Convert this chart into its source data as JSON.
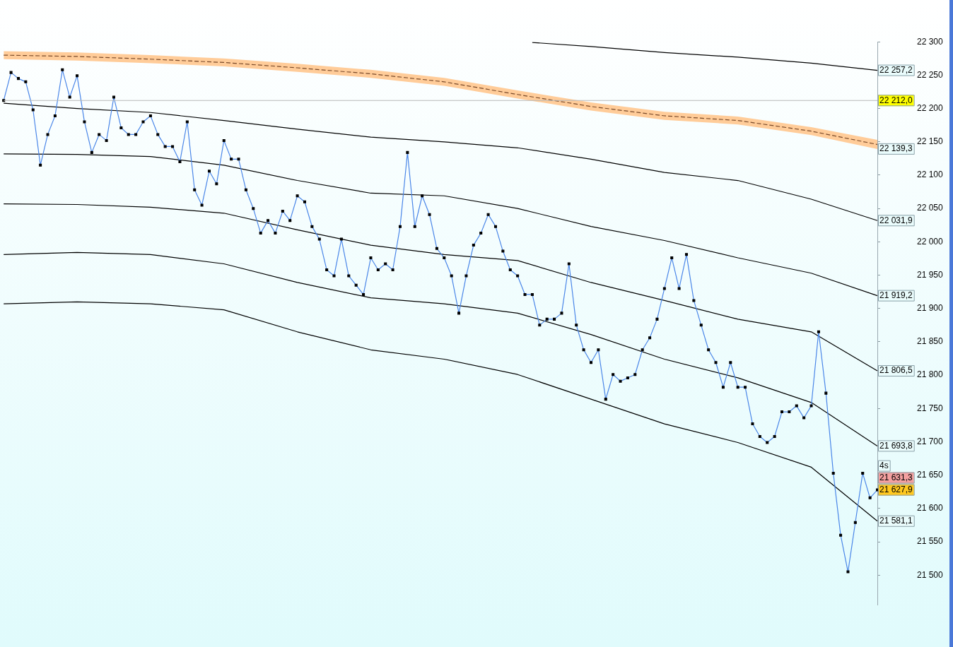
{
  "chart_data": {
    "type": "line",
    "categories": [
      null,
      null,
      null,
      null,
      null,
      null,
      null,
      null,
      null,
      null,
      null,
      null,
      null,
      null,
      null,
      null,
      null,
      null,
      null,
      null,
      null,
      null,
      null,
      null,
      null,
      null,
      null,
      null,
      null,
      null,
      null,
      null,
      null,
      null,
      null,
      null,
      null,
      null,
      null,
      null,
      null,
      null,
      null,
      null,
      null,
      null,
      null,
      null,
      null,
      null,
      null,
      null,
      null,
      null,
      null,
      null,
      null,
      null,
      null,
      null,
      null,
      null,
      null,
      null,
      null,
      null,
      null,
      null,
      null,
      null,
      null,
      null,
      null,
      null,
      null,
      null,
      null,
      null,
      null,
      null,
      null,
      null,
      null,
      null,
      null,
      null,
      null,
      null,
      null,
      null,
      null,
      null,
      null,
      null,
      null,
      null,
      null,
      null,
      null,
      null,
      null,
      null,
      null,
      null,
      null,
      null,
      null,
      null,
      null,
      null,
      null,
      null,
      null,
      null,
      null,
      null,
      null,
      null,
      null,
      null
    ],
    "tick_labels": "y",
    "legend": false,
    "grid": false,
    "ylim": [
      21455,
      22300
    ],
    "yticks": [
      {
        "value": 21500,
        "label": "21 500"
      },
      {
        "value": 21550,
        "label": "21 550"
      },
      {
        "value": 21600,
        "label": "21 600"
      },
      {
        "value": 21650,
        "label": "21 650"
      },
      {
        "value": 21700,
        "label": "21 700"
      },
      {
        "value": 21750,
        "label": "21 750"
      },
      {
        "value": 21800,
        "label": "21 800"
      },
      {
        "value": 21850,
        "label": "21 850"
      },
      {
        "value": 21900,
        "label": "21 900"
      },
      {
        "value": 21950,
        "label": "21 950"
      },
      {
        "value": 22000,
        "label": "22 000"
      },
      {
        "value": 22050,
        "label": "22 050"
      },
      {
        "value": 22100,
        "label": "22 100"
      },
      {
        "value": 22150,
        "label": "22 150"
      },
      {
        "value": 22200,
        "label": "22 200"
      },
      {
        "value": 22250,
        "label": "22 250"
      },
      {
        "value": 22300,
        "label": "22 300"
      }
    ],
    "series": [
      {
        "type": "line",
        "color": "#4a86e8",
        "marker": "square",
        "values": [
          22212,
          22254,
          22245,
          22240,
          22198,
          22115,
          22161,
          22189,
          22258,
          22217,
          22249,
          22180,
          22134,
          22161,
          22152,
          22217,
          22171,
          22161,
          22161,
          22180,
          22189,
          22161,
          22143,
          22143,
          22120,
          22180,
          22078,
          22055,
          22106,
          22087,
          22152,
          22124,
          22124,
          22078,
          22050,
          22013,
          22032,
          22013,
          22046,
          22032,
          22069,
          22060,
          22023,
          22004,
          21958,
          21949,
          22004,
          21949,
          21935,
          21921,
          21976,
          21958,
          21967,
          21958,
          22023,
          22134,
          22023,
          22069,
          22041,
          21990,
          21976,
          21949,
          21893,
          21949,
          21995,
          22013,
          22041,
          22023,
          21986,
          21958,
          21949,
          21921,
          21921,
          21875,
          21884,
          21884,
          21893,
          21967,
          21875,
          21838,
          21819,
          21838,
          21764,
          21801,
          21791,
          21796,
          21801,
          21838,
          21856,
          21884,
          21930,
          21976,
          21930,
          21981,
          21912,
          21875,
          21838,
          21819,
          21782,
          21819,
          21782,
          21782,
          21727,
          21708,
          21699,
          21708,
          21745,
          21745,
          21754,
          21736,
          21754,
          21865,
          21773,
          21653,
          21560,
          21505,
          21579,
          21653,
          21616,
          21627.9
        ],
        "value_labels": [
          null,
          null,
          null,
          null,
          null,
          null,
          null,
          null,
          null,
          null,
          null,
          null,
          null,
          null,
          null,
          null,
          null,
          null,
          null,
          null,
          null,
          null,
          null,
          null,
          null,
          null,
          null,
          null,
          null,
          null,
          null,
          null,
          null,
          null,
          null,
          null,
          null,
          null,
          null,
          null,
          null,
          null,
          null,
          null,
          null,
          null,
          null,
          null,
          null,
          null,
          null,
          null,
          null,
          null,
          null,
          null,
          null,
          null,
          null,
          null,
          null,
          null,
          null,
          null,
          null,
          null,
          null,
          null,
          null,
          null,
          null,
          null,
          null,
          null,
          null,
          null,
          null,
          null,
          null,
          null,
          null,
          null,
          null,
          null,
          null,
          null,
          null,
          null,
          null,
          null,
          null,
          null,
          null,
          null,
          null,
          null,
          null,
          null,
          null,
          null,
          null,
          null,
          null,
          null,
          null,
          null,
          null,
          null,
          null,
          null,
          null,
          null,
          null,
          null,
          null,
          null,
          null,
          null,
          null,
          "21 627,9"
        ]
      },
      {
        "type": "line",
        "color": "#000000",
        "marker": "none",
        "values": [
          null,
          null,
          null,
          null,
          null,
          null,
          null,
          null,
          null,
          null,
          null,
          null,
          null,
          null,
          null,
          null,
          null,
          null,
          null,
          null,
          null,
          null,
          null,
          null,
          null,
          null,
          null,
          null,
          null,
          null,
          null,
          null,
          null,
          null,
          null,
          null,
          null,
          null,
          null,
          null,
          null,
          null,
          null,
          null,
          null,
          null,
          null,
          null,
          null,
          null,
          null,
          null,
          null,
          null,
          null,
          null,
          null,
          null,
          null,
          null,
          null,
          null,
          null,
          null,
          null,
          null,
          null,
          null,
          null,
          null,
          null,
          null,
          22299,
          null,
          null,
          null,
          null,
          null,
          null,
          null,
          22293,
          null,
          null,
          null,
          null,
          null,
          null,
          null,
          null,
          null,
          22284,
          null,
          null,
          null,
          null,
          null,
          null,
          null,
          null,
          null,
          22277,
          null,
          null,
          null,
          null,
          null,
          null,
          null,
          null,
          null,
          22268,
          null,
          null,
          null,
          null,
          null,
          null,
          null,
          null,
          22257.2
        ],
        "value_labels": [
          null,
          null,
          null,
          null,
          null,
          null,
          null,
          null,
          null,
          null,
          null,
          null,
          null,
          null,
          null,
          null,
          null,
          null,
          null,
          null,
          null,
          null,
          null,
          null,
          null,
          null,
          null,
          null,
          null,
          null,
          null,
          null,
          null,
          null,
          null,
          null,
          null,
          null,
          null,
          null,
          null,
          null,
          null,
          null,
          null,
          null,
          null,
          null,
          null,
          null,
          null,
          null,
          null,
          null,
          null,
          null,
          null,
          null,
          null,
          null,
          null,
          null,
          null,
          null,
          null,
          null,
          null,
          null,
          null,
          null,
          null,
          null,
          null,
          null,
          null,
          null,
          null,
          null,
          null,
          null,
          null,
          null,
          null,
          null,
          null,
          null,
          null,
          null,
          null,
          null,
          null,
          null,
          null,
          null,
          null,
          null,
          null,
          null,
          null,
          null,
          null,
          null,
          null,
          null,
          null,
          null,
          null,
          null,
          null,
          null,
          null,
          null,
          null,
          null,
          null,
          null,
          null,
          null,
          null,
          "22 257,2"
        ]
      },
      {
        "type": "line",
        "color": "#7a4a2a",
        "marker": "none",
        "line_style": "dashed",
        "values": [
          22280,
          null,
          null,
          null,
          null,
          null,
          null,
          null,
          null,
          null,
          22278,
          null,
          null,
          null,
          null,
          null,
          null,
          null,
          null,
          null,
          22274,
          null,
          null,
          null,
          null,
          null,
          null,
          null,
          null,
          null,
          22269,
          null,
          null,
          null,
          null,
          null,
          null,
          null,
          null,
          null,
          22261,
          null,
          null,
          null,
          null,
          null,
          null,
          null,
          null,
          null,
          22252,
          null,
          null,
          null,
          null,
          null,
          null,
          null,
          null,
          null,
          22240,
          null,
          null,
          null,
          null,
          null,
          null,
          null,
          null,
          null,
          22221,
          null,
          null,
          null,
          null,
          null,
          null,
          null,
          null,
          null,
          22203,
          null,
          null,
          null,
          null,
          null,
          null,
          null,
          null,
          null,
          22189,
          null,
          null,
          null,
          null,
          null,
          null,
          null,
          null,
          null,
          22182,
          null,
          null,
          null,
          null,
          null,
          null,
          null,
          null,
          null,
          22166,
          null,
          null,
          null,
          null,
          null,
          null,
          null,
          null,
          22146
        ],
        "lower": [
          22274,
          null,
          null,
          null,
          null,
          null,
          null,
          null,
          null,
          null,
          22272,
          null,
          null,
          null,
          null,
          null,
          null,
          null,
          null,
          null,
          22268,
          null,
          null,
          null,
          null,
          null,
          null,
          null,
          null,
          null,
          22263,
          null,
          null,
          null,
          null,
          null,
          null,
          null,
          null,
          null,
          22255,
          null,
          null,
          null,
          null,
          null,
          null,
          null,
          null,
          null,
          22246,
          null,
          null,
          null,
          null,
          null,
          null,
          null,
          null,
          null,
          22234,
          null,
          null,
          null,
          null,
          null,
          null,
          null,
          null,
          null,
          22215,
          null,
          null,
          null,
          null,
          null,
          null,
          null,
          null,
          null,
          22197,
          null,
          null,
          null,
          null,
          null,
          null,
          null,
          null,
          null,
          22183,
          null,
          null,
          null,
          null,
          null,
          null,
          null,
          null,
          null,
          22176,
          null,
          null,
          null,
          null,
          null,
          null,
          null,
          null,
          null,
          22160,
          null,
          null,
          null,
          null,
          null,
          null,
          null,
          null,
          22139.3
        ],
        "upper": [
          22286,
          null,
          null,
          null,
          null,
          null,
          null,
          null,
          null,
          null,
          22284,
          null,
          null,
          null,
          null,
          null,
          null,
          null,
          null,
          null,
          22280,
          null,
          null,
          null,
          null,
          null,
          null,
          null,
          null,
          null,
          22275,
          null,
          null,
          null,
          null,
          null,
          null,
          null,
          null,
          null,
          22267,
          null,
          null,
          null,
          null,
          null,
          null,
          null,
          null,
          null,
          22258,
          null,
          null,
          null,
          null,
          null,
          null,
          null,
          null,
          null,
          22246,
          null,
          null,
          null,
          null,
          null,
          null,
          null,
          null,
          null,
          22227,
          null,
          null,
          null,
          null,
          null,
          null,
          null,
          null,
          null,
          22209,
          null,
          null,
          null,
          null,
          null,
          null,
          null,
          null,
          null,
          22195,
          null,
          null,
          null,
          null,
          null,
          null,
          null,
          null,
          null,
          22188,
          null,
          null,
          null,
          null,
          null,
          null,
          null,
          null,
          null,
          22172,
          null,
          null,
          null,
          null,
          null,
          null,
          null,
          null,
          22153
        ]
      },
      {
        "type": "line",
        "color": "#000000",
        "marker": "none",
        "values": [
          22208,
          null,
          null,
          null,
          null,
          null,
          null,
          null,
          null,
          null,
          22200,
          null,
          null,
          null,
          null,
          null,
          null,
          null,
          null,
          null,
          22194,
          null,
          null,
          null,
          null,
          null,
          null,
          null,
          null,
          null,
          22182,
          null,
          null,
          null,
          null,
          null,
          null,
          null,
          null,
          null,
          22169,
          null,
          null,
          null,
          null,
          null,
          null,
          null,
          null,
          null,
          22157,
          null,
          null,
          null,
          null,
          null,
          null,
          null,
          null,
          null,
          22150,
          null,
          null,
          null,
          null,
          null,
          null,
          null,
          null,
          null,
          22141,
          null,
          null,
          null,
          null,
          null,
          null,
          null,
          null,
          null,
          22124,
          null,
          null,
          null,
          null,
          null,
          null,
          null,
          null,
          null,
          22104,
          null,
          null,
          null,
          null,
          null,
          null,
          null,
          null,
          null,
          22092,
          null,
          null,
          null,
          null,
          null,
          null,
          null,
          null,
          null,
          22064,
          null,
          null,
          null,
          null,
          null,
          null,
          null,
          null,
          22031.9
        ],
        "value_labels": [
          null,
          null,
          null,
          null,
          null,
          null,
          null,
          null,
          null,
          null,
          null,
          null,
          null,
          null,
          null,
          null,
          null,
          null,
          null,
          null,
          null,
          null,
          null,
          null,
          null,
          null,
          null,
          null,
          null,
          null,
          null,
          null,
          null,
          null,
          null,
          null,
          null,
          null,
          null,
          null,
          null,
          null,
          null,
          null,
          null,
          null,
          null,
          null,
          null,
          null,
          null,
          null,
          null,
          null,
          null,
          null,
          null,
          null,
          null,
          null,
          null,
          null,
          null,
          null,
          null,
          null,
          null,
          null,
          null,
          null,
          null,
          null,
          null,
          null,
          null,
          null,
          null,
          null,
          null,
          null,
          null,
          null,
          null,
          null,
          null,
          null,
          null,
          null,
          null,
          null,
          null,
          null,
          null,
          null,
          null,
          null,
          null,
          null,
          null,
          null,
          null,
          null,
          null,
          null,
          null,
          null,
          null,
          null,
          null,
          null,
          null,
          null,
          null,
          null,
          null,
          null,
          null,
          null,
          null,
          "22 031,9"
        ]
      },
      {
        "type": "line",
        "color": "#000000",
        "marker": "none",
        "values": [
          22132,
          null,
          null,
          null,
          null,
          null,
          null,
          null,
          null,
          null,
          22131,
          null,
          null,
          null,
          null,
          null,
          null,
          null,
          null,
          null,
          22128,
          null,
          null,
          null,
          null,
          null,
          null,
          null,
          null,
          null,
          22115,
          null,
          null,
          null,
          null,
          null,
          null,
          null,
          null,
          null,
          22092,
          null,
          null,
          null,
          null,
          null,
          null,
          null,
          null,
          null,
          22073,
          null,
          null,
          null,
          null,
          null,
          null,
          null,
          null,
          null,
          22069,
          null,
          null,
          null,
          null,
          null,
          null,
          null,
          null,
          null,
          22050,
          null,
          null,
          null,
          null,
          null,
          null,
          null,
          null,
          null,
          22023,
          null,
          null,
          null,
          null,
          null,
          null,
          null,
          null,
          null,
          22002,
          null,
          null,
          null,
          null,
          null,
          null,
          null,
          null,
          null,
          21976,
          null,
          null,
          null,
          null,
          null,
          null,
          null,
          null,
          null,
          21953,
          null,
          null,
          null,
          null,
          null,
          null,
          null,
          null,
          21919.2
        ],
        "value_labels": [
          null,
          null,
          null,
          null,
          null,
          null,
          null,
          null,
          null,
          null,
          null,
          null,
          null,
          null,
          null,
          null,
          null,
          null,
          null,
          null,
          null,
          null,
          null,
          null,
          null,
          null,
          null,
          null,
          null,
          null,
          null,
          null,
          null,
          null,
          null,
          null,
          null,
          null,
          null,
          null,
          null,
          null,
          null,
          null,
          null,
          null,
          null,
          null,
          null,
          null,
          null,
          null,
          null,
          null,
          null,
          null,
          null,
          null,
          null,
          null,
          null,
          null,
          null,
          null,
          null,
          null,
          null,
          null,
          null,
          null,
          null,
          null,
          null,
          null,
          null,
          null,
          null,
          null,
          null,
          null,
          null,
          null,
          null,
          null,
          null,
          null,
          null,
          null,
          null,
          null,
          null,
          null,
          null,
          null,
          null,
          null,
          null,
          null,
          null,
          null,
          null,
          null,
          null,
          null,
          null,
          null,
          null,
          null,
          null,
          null,
          null,
          null,
          null,
          null,
          null,
          null,
          null,
          null,
          null,
          "21 919,2"
        ]
      },
      {
        "type": "line",
        "color": "#000000",
        "marker": "none",
        "values": [
          22057,
          null,
          null,
          null,
          null,
          null,
          null,
          null,
          null,
          null,
          22056,
          null,
          null,
          null,
          null,
          null,
          null,
          null,
          null,
          null,
          22052,
          null,
          null,
          null,
          null,
          null,
          null,
          null,
          null,
          null,
          22043,
          null,
          null,
          null,
          null,
          null,
          null,
          null,
          null,
          null,
          22018,
          null,
          null,
          null,
          null,
          null,
          null,
          null,
          null,
          null,
          21995,
          null,
          null,
          null,
          null,
          null,
          null,
          null,
          null,
          null,
          21981,
          null,
          null,
          null,
          null,
          null,
          null,
          null,
          null,
          null,
          21972,
          null,
          null,
          null,
          null,
          null,
          null,
          null,
          null,
          null,
          21939,
          null,
          null,
          null,
          null,
          null,
          null,
          null,
          null,
          null,
          21912,
          null,
          null,
          null,
          null,
          null,
          null,
          null,
          null,
          null,
          21884,
          null,
          null,
          null,
          null,
          null,
          null,
          null,
          null,
          null,
          21865,
          null,
          null,
          null,
          null,
          null,
          null,
          null,
          null,
          21806.5
        ],
        "value_labels": [
          null,
          null,
          null,
          null,
          null,
          null,
          null,
          null,
          null,
          null,
          null,
          null,
          null,
          null,
          null,
          null,
          null,
          null,
          null,
          null,
          null,
          null,
          null,
          null,
          null,
          null,
          null,
          null,
          null,
          null,
          null,
          null,
          null,
          null,
          null,
          null,
          null,
          null,
          null,
          null,
          null,
          null,
          null,
          null,
          null,
          null,
          null,
          null,
          null,
          null,
          null,
          null,
          null,
          null,
          null,
          null,
          null,
          null,
          null,
          null,
          null,
          null,
          null,
          null,
          null,
          null,
          null,
          null,
          null,
          null,
          null,
          null,
          null,
          null,
          null,
          null,
          null,
          null,
          null,
          null,
          null,
          null,
          null,
          null,
          null,
          null,
          null,
          null,
          null,
          null,
          null,
          null,
          null,
          null,
          null,
          null,
          null,
          null,
          null,
          null,
          null,
          null,
          null,
          null,
          null,
          null,
          null,
          null,
          null,
          null,
          null,
          null,
          null,
          null,
          null,
          null,
          null,
          null,
          null,
          "21 806,5"
        ]
      },
      {
        "type": "line",
        "color": "#000000",
        "marker": "none",
        "values": [
          21981,
          null,
          null,
          null,
          null,
          null,
          null,
          null,
          null,
          null,
          21984,
          null,
          null,
          null,
          null,
          null,
          null,
          null,
          null,
          null,
          21981,
          null,
          null,
          null,
          null,
          null,
          null,
          null,
          null,
          null,
          21967,
          null,
          null,
          null,
          null,
          null,
          null,
          null,
          null,
          null,
          21939,
          null,
          null,
          null,
          null,
          null,
          null,
          null,
          null,
          null,
          21916,
          null,
          null,
          null,
          null,
          null,
          null,
          null,
          null,
          null,
          21907,
          null,
          null,
          null,
          null,
          null,
          null,
          null,
          null,
          null,
          21893,
          null,
          null,
          null,
          null,
          null,
          null,
          null,
          null,
          null,
          21861,
          null,
          null,
          null,
          null,
          null,
          null,
          null,
          null,
          null,
          21824,
          null,
          null,
          null,
          null,
          null,
          null,
          null,
          null,
          null,
          21796,
          null,
          null,
          null,
          null,
          null,
          null,
          null,
          null,
          null,
          21759,
          null,
          null,
          null,
          null,
          null,
          null,
          null,
          null,
          21693.8
        ],
        "value_labels": [
          null,
          null,
          null,
          null,
          null,
          null,
          null,
          null,
          null,
          null,
          null,
          null,
          null,
          null,
          null,
          null,
          null,
          null,
          null,
          null,
          null,
          null,
          null,
          null,
          null,
          null,
          null,
          null,
          null,
          null,
          null,
          null,
          null,
          null,
          null,
          null,
          null,
          null,
          null,
          null,
          null,
          null,
          null,
          null,
          null,
          null,
          null,
          null,
          null,
          null,
          null,
          null,
          null,
          null,
          null,
          null,
          null,
          null,
          null,
          null,
          null,
          null,
          null,
          null,
          null,
          null,
          null,
          null,
          null,
          null,
          null,
          null,
          null,
          null,
          null,
          null,
          null,
          null,
          null,
          null,
          null,
          null,
          null,
          null,
          null,
          null,
          null,
          null,
          null,
          null,
          null,
          null,
          null,
          null,
          null,
          null,
          null,
          null,
          null,
          null,
          null,
          null,
          null,
          null,
          null,
          null,
          null,
          null,
          null,
          null,
          null,
          null,
          null,
          null,
          null,
          null,
          null,
          null,
          null,
          "21 693,8"
        ]
      },
      {
        "type": "line",
        "color": "#000000",
        "marker": "none",
        "values": [
          21907,
          null,
          null,
          null,
          null,
          null,
          null,
          null,
          null,
          null,
          21910,
          null,
          null,
          null,
          null,
          null,
          null,
          null,
          null,
          null,
          21907,
          null,
          null,
          null,
          null,
          null,
          null,
          null,
          null,
          null,
          21898,
          null,
          null,
          null,
          null,
          null,
          null,
          null,
          null,
          null,
          21865,
          null,
          null,
          null,
          null,
          null,
          null,
          null,
          null,
          null,
          21838,
          null,
          null,
          null,
          null,
          null,
          null,
          null,
          null,
          null,
          21824,
          null,
          null,
          null,
          null,
          null,
          null,
          null,
          null,
          null,
          21801,
          null,
          null,
          null,
          null,
          null,
          null,
          null,
          null,
          null,
          21764,
          null,
          null,
          null,
          null,
          null,
          null,
          null,
          null,
          null,
          21727,
          null,
          null,
          null,
          null,
          null,
          null,
          null,
          null,
          null,
          21699,
          null,
          null,
          null,
          null,
          null,
          null,
          null,
          null,
          null,
          21662,
          null,
          null,
          null,
          null,
          null,
          null,
          null,
          null,
          21581.1
        ],
        "value_labels": [
          null,
          null,
          null,
          null,
          null,
          null,
          null,
          null,
          null,
          null,
          null,
          null,
          null,
          null,
          null,
          null,
          null,
          null,
          null,
          null,
          null,
          null,
          null,
          null,
          null,
          null,
          null,
          null,
          null,
          null,
          null,
          null,
          null,
          null,
          null,
          null,
          null,
          null,
          null,
          null,
          null,
          null,
          null,
          null,
          null,
          null,
          null,
          null,
          null,
          null,
          null,
          null,
          null,
          null,
          null,
          null,
          null,
          null,
          null,
          null,
          null,
          null,
          null,
          null,
          null,
          null,
          null,
          null,
          null,
          null,
          null,
          null,
          null,
          null,
          null,
          null,
          null,
          null,
          null,
          null,
          null,
          null,
          null,
          null,
          null,
          null,
          null,
          null,
          null,
          null,
          null,
          null,
          null,
          null,
          null,
          null,
          null,
          null,
          null,
          null,
          null,
          null,
          null,
          null,
          null,
          null,
          null,
          null,
          null,
          null,
          null,
          null,
          null,
          null,
          null,
          null,
          null,
          null,
          null,
          "21 581,1"
        ]
      }
    ],
    "ref_lines": [
      {
        "axis": "y",
        "value": 22212.0,
        "label": "22 212,0",
        "color": "#b8b8b8"
      }
    ],
    "annotations": [
      "22 139,3",
      "21 631,3",
      "4s"
    ]
  }
}
